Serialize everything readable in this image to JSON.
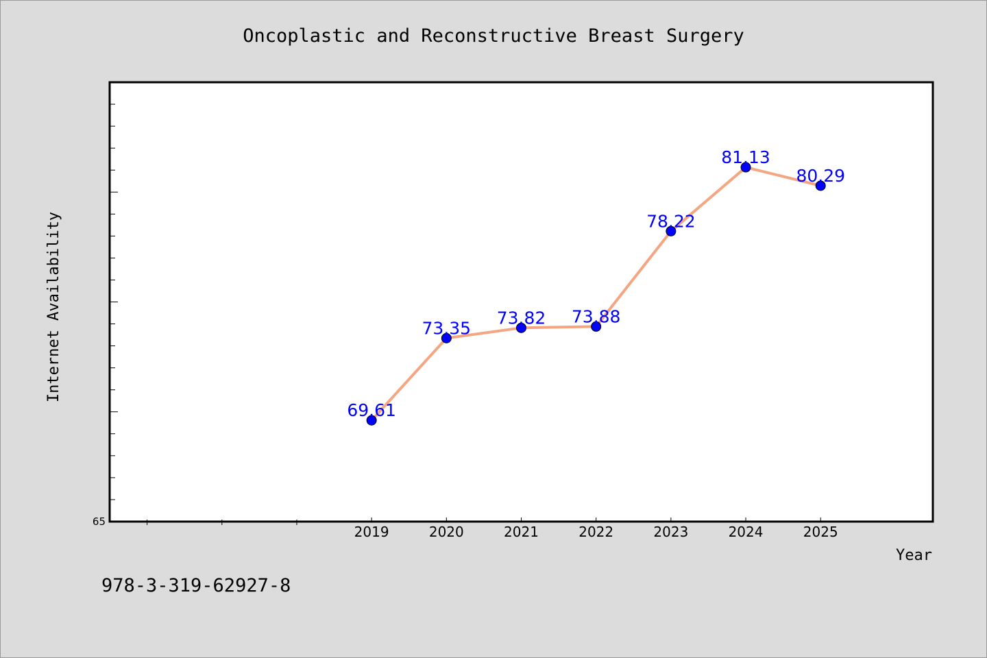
{
  "isbn": "978-3-319-62927-8",
  "chart_data": {
    "type": "line",
    "title": "Oncoplastic and Reconstructive Breast Surgery",
    "xlabel": "Year",
    "ylabel": "Internet Availability",
    "x": [
      2019,
      2020,
      2021,
      2022,
      2023,
      2024,
      2025
    ],
    "series": [
      {
        "values": [
          69.61,
          73.35,
          73.82,
          73.88,
          78.22,
          81.13,
          80.29
        ]
      }
    ],
    "data_labels": [
      "69.61",
      "73.35",
      "73.82",
      "73.88",
      "78.22",
      "81.13",
      "80.29"
    ],
    "xlim": [
      2015.5,
      2026.5
    ],
    "ylim": [
      65,
      85
    ],
    "y_tick_labels": [
      "65"
    ],
    "x_tick_labels": [
      "2019",
      "2020",
      "2021",
      "2022",
      "2023",
      "2024",
      "2025"
    ],
    "grid": false,
    "legend": "none",
    "colors": {
      "line": "#f4a582",
      "marker": "#0000ff",
      "label": "#0000ff",
      "background": "#dcdcdc",
      "plot_bg": "#ffffff"
    }
  }
}
